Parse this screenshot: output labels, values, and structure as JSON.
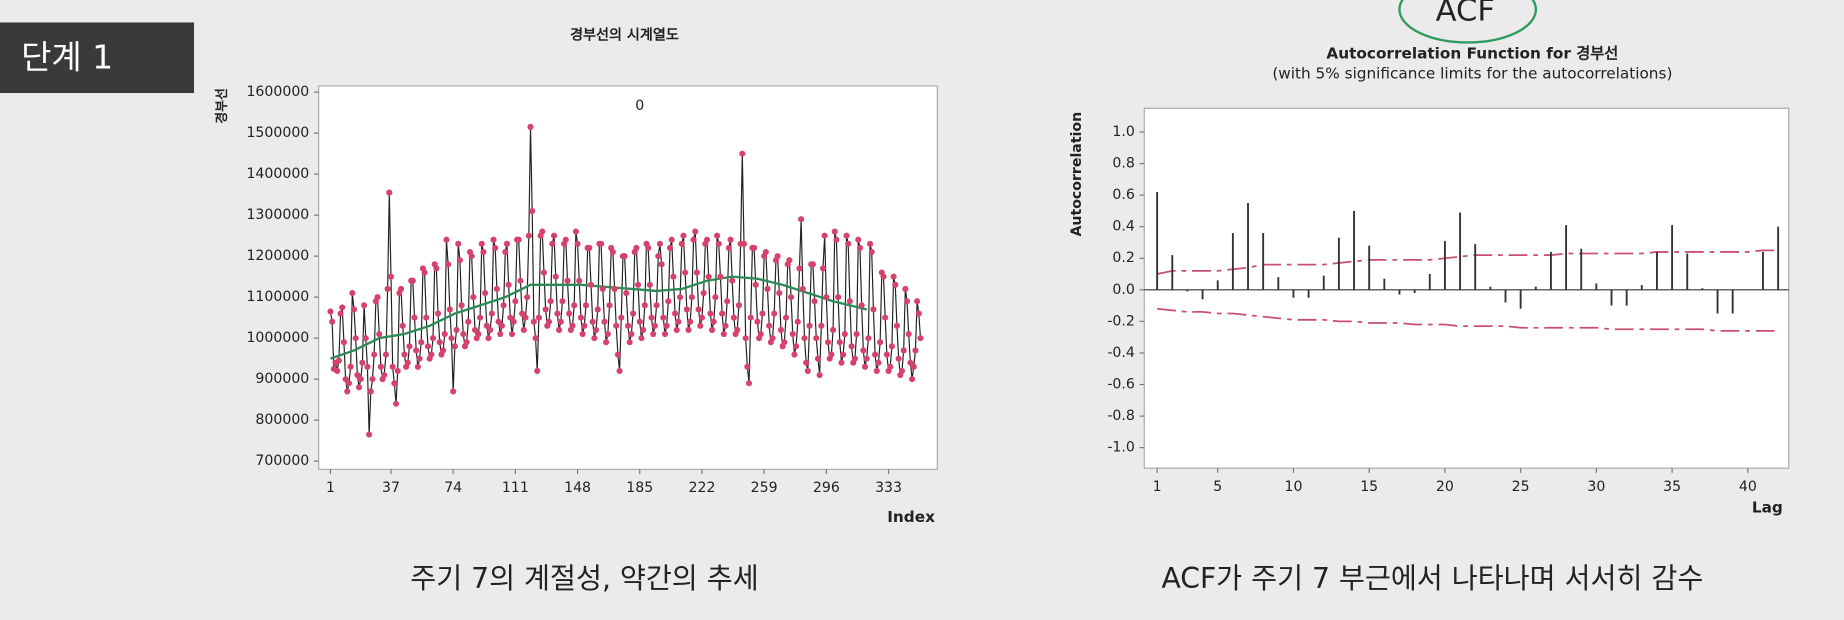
{
  "badge": "단계 1",
  "chart_data": [
    {
      "type": "line",
      "title": "경부선의 시계열도",
      "y_label": "경부선",
      "x_label": "Index",
      "annotation": "0",
      "caption": "주기 7의 계절성, 약간의 추세",
      "xlim": [
        -6,
        362
      ],
      "xticks": [
        1,
        37,
        74,
        111,
        148,
        185,
        222,
        259,
        296,
        333
      ],
      "ylim": [
        680000,
        1615000
      ],
      "yticks": [
        700000,
        800000,
        900000,
        1000000,
        1100000,
        1200000,
        1300000,
        1400000,
        1500000,
        1600000
      ],
      "series": [
        {
          "color": "#222222",
          "marker_color": "#d6436a",
          "markers": true,
          "x": [
            1,
            2,
            3,
            4,
            5,
            6,
            7,
            8,
            9,
            10,
            11,
            12,
            13,
            14,
            15,
            16,
            17,
            18,
            19,
            20,
            21,
            22,
            23,
            24,
            25,
            26,
            27,
            28,
            29,
            30,
            31,
            32,
            33,
            34,
            35,
            36,
            37,
            38,
            39,
            40,
            41,
            42,
            43,
            44,
            45,
            46,
            47,
            48,
            49,
            50,
            51,
            52,
            53,
            54,
            55,
            56,
            57,
            58,
            59,
            60,
            61,
            62,
            63,
            64,
            65,
            66,
            67,
            68,
            69,
            70,
            71,
            72,
            73,
            74,
            75,
            76,
            77,
            78,
            79,
            80,
            81,
            82,
            83,
            84,
            85,
            86,
            87,
            88,
            89,
            90,
            91,
            92,
            93,
            94,
            95,
            96,
            97,
            98,
            99,
            100,
            101,
            102,
            103,
            104,
            105,
            106,
            107,
            108,
            109,
            110,
            111,
            112,
            113,
            114,
            115,
            116,
            117,
            118,
            119,
            120,
            121,
            122,
            123,
            124,
            125,
            126,
            127,
            128,
            129,
            130,
            131,
            132,
            133,
            134,
            135,
            136,
            137,
            138,
            139,
            140,
            141,
            142,
            143,
            144,
            145,
            146,
            147,
            148,
            149,
            150,
            151,
            152,
            153,
            154,
            155,
            156,
            157,
            158,
            159,
            160,
            161,
            162,
            163,
            164,
            165,
            166,
            167,
            168,
            169,
            170,
            171,
            172,
            173,
            174,
            175,
            176,
            177,
            178,
            179,
            180,
            181,
            182,
            183,
            184,
            185,
            186,
            187,
            188,
            189,
            190,
            191,
            192,
            193,
            194,
            195,
            196,
            197,
            198,
            199,
            200,
            201,
            202,
            203,
            204,
            205,
            206,
            207,
            208,
            209,
            210,
            211,
            212,
            213,
            214,
            215,
            216,
            217,
            218,
            219,
            220,
            221,
            222,
            223,
            224,
            225,
            226,
            227,
            228,
            229,
            230,
            231,
            232,
            233,
            234,
            235,
            236,
            237,
            238,
            239,
            240,
            241,
            242,
            243,
            244,
            245,
            246,
            247,
            248,
            249,
            250,
            251,
            252,
            253,
            254,
            255,
            256,
            257,
            258,
            259,
            260,
            261,
            262,
            263,
            264,
            265,
            266,
            267,
            268,
            269,
            270,
            271,
            272,
            273,
            274,
            275,
            276,
            277,
            278,
            279,
            280,
            281,
            282,
            283,
            284,
            285,
            286,
            287,
            288,
            289,
            290,
            291,
            292,
            293,
            294,
            295,
            296,
            297,
            298,
            299,
            300,
            301,
            302,
            303,
            304,
            305,
            306,
            307,
            308,
            309,
            310,
            311,
            312,
            313,
            314,
            315,
            316,
            317,
            318,
            319,
            320,
            321,
            322,
            323,
            324,
            325,
            326,
            327,
            328,
            329,
            330,
            331,
            332,
            333,
            334,
            335,
            336,
            337,
            338,
            339,
            340,
            341,
            342,
            343,
            344,
            345,
            346,
            347,
            348,
            349,
            350,
            351,
            352
          ],
          "values": [
            1065000,
            1040000,
            925000,
            940000,
            920000,
            945000,
            1060000,
            1075000,
            990000,
            900000,
            870000,
            890000,
            930000,
            1110000,
            1070000,
            1000000,
            910000,
            880000,
            900000,
            940000,
            1080000,
            1000000,
            930000,
            765000,
            870000,
            900000,
            960000,
            1090000,
            1100000,
            1010000,
            930000,
            900000,
            910000,
            960000,
            1120000,
            1355000,
            1150000,
            930000,
            890000,
            840000,
            920000,
            1110000,
            1120000,
            1030000,
            960000,
            930000,
            940000,
            980000,
            1140000,
            1140000,
            1050000,
            970000,
            930000,
            950000,
            990000,
            1170000,
            1160000,
            1050000,
            980000,
            950000,
            960000,
            1000000,
            1180000,
            1170000,
            1060000,
            990000,
            960000,
            970000,
            1010000,
            1240000,
            1180000,
            1070000,
            1000000,
            870000,
            980000,
            1020000,
            1230000,
            1190000,
            1080000,
            1010000,
            980000,
            990000,
            1040000,
            1210000,
            1200000,
            1100000,
            1020000,
            1000000,
            1010000,
            1050000,
            1230000,
            1210000,
            1110000,
            1030000,
            1000000,
            1020000,
            1060000,
            1240000,
            1220000,
            1120000,
            1040000,
            1010000,
            1030000,
            1080000,
            1210000,
            1230000,
            1130000,
            1050000,
            1010000,
            1040000,
            1090000,
            1240000,
            1240000,
            1140000,
            1060000,
            1020000,
            1050000,
            1100000,
            1250000,
            1515000,
            1310000,
            1040000,
            1000000,
            920000,
            1050000,
            1250000,
            1260000,
            1160000,
            1070000,
            1030000,
            1040000,
            1090000,
            1230000,
            1250000,
            1150000,
            1060000,
            1020000,
            1040000,
            1090000,
            1230000,
            1240000,
            1140000,
            1060000,
            1020000,
            1030000,
            1080000,
            1260000,
            1230000,
            1140000,
            1050000,
            1010000,
            1030000,
            1080000,
            1220000,
            1220000,
            1130000,
            1040000,
            1000000,
            1020000,
            1070000,
            1230000,
            1230000,
            1120000,
            1040000,
            990000,
            1010000,
            1080000,
            1220000,
            1210000,
            1120000,
            1030000,
            960000,
            920000,
            1050000,
            1200000,
            1200000,
            1110000,
            1030000,
            990000,
            1010000,
            1060000,
            1210000,
            1220000,
            1130000,
            1040000,
            1000000,
            1020000,
            1080000,
            1230000,
            1220000,
            1130000,
            1050000,
            1010000,
            1030000,
            1080000,
            1200000,
            1230000,
            1180000,
            1050000,
            1010000,
            1030000,
            1090000,
            1220000,
            1240000,
            1150000,
            1060000,
            1020000,
            1040000,
            1100000,
            1230000,
            1250000,
            1160000,
            1070000,
            1020000,
            1040000,
            1100000,
            1240000,
            1260000,
            1160000,
            1070000,
            1030000,
            1050000,
            1110000,
            1230000,
            1240000,
            1150000,
            1060000,
            1020000,
            1040000,
            1100000,
            1250000,
            1230000,
            1150000,
            1060000,
            1010000,
            1030000,
            1090000,
            1220000,
            1240000,
            1140000,
            1050000,
            1010000,
            1020000,
            1080000,
            1230000,
            1450000,
            1230000,
            1000000,
            930000,
            890000,
            1050000,
            1220000,
            1220000,
            1130000,
            1040000,
            1000000,
            1010000,
            1060000,
            1200000,
            1210000,
            1120000,
            1030000,
            990000,
            1000000,
            1060000,
            1190000,
            1200000,
            1110000,
            1020000,
            980000,
            990000,
            1050000,
            1180000,
            1190000,
            1100000,
            1010000,
            960000,
            980000,
            1040000,
            1170000,
            1290000,
            1120000,
            1000000,
            940000,
            920000,
            1030000,
            1180000,
            1180000,
            1090000,
            1000000,
            950000,
            910000,
            1030000,
            1170000,
            1250000,
            1100000,
            990000,
            950000,
            960000,
            1020000,
            1260000,
            1240000,
            1100000,
            990000,
            940000,
            960000,
            1010000,
            1250000,
            1230000,
            1090000,
            980000,
            940000,
            950000,
            1010000,
            1240000,
            1220000,
            1080000,
            970000,
            930000,
            950000,
            1000000,
            1230000,
            1210000,
            1070000,
            960000,
            920000,
            940000,
            990000,
            1160000,
            1150000,
            1050000,
            960000,
            920000,
            930000,
            980000,
            1150000,
            1130000,
            1030000,
            950000,
            910000,
            920000,
            970000,
            1120000,
            1090000,
            1010000,
            940000,
            900000,
            930000,
            970000,
            1090000,
            1060000,
            1000000
          ]
        },
        {
          "color": "#2e8b57",
          "markers": false,
          "x": [
            1,
            15,
            30,
            45,
            60,
            75,
            90,
            105,
            120,
            135,
            150,
            165,
            180,
            195,
            210,
            225,
            240,
            255,
            270,
            285,
            300,
            315,
            320
          ],
          "values": [
            950000,
            970000,
            1000000,
            1010000,
            1030000,
            1060000,
            1080000,
            1100000,
            1130000,
            1130000,
            1130000,
            1125000,
            1120000,
            1115000,
            1120000,
            1140000,
            1150000,
            1145000,
            1130000,
            1110000,
            1090000,
            1075000,
            1070000
          ]
        }
      ]
    },
    {
      "type": "bar",
      "title": "Autocorrelation Function for 경부선",
      "subtitle": "(with 5% significance limits for the autocorrelations)",
      "annotation": "ACF",
      "y_label": "Autocorrelation",
      "x_label": "Lag",
      "caption": "ACF가 주기 7 부근에서 나타나며 서서히 감수",
      "color": "#333333",
      "limit_color": "#c8506e",
      "xlim": [
        0.15,
        42.7
      ],
      "xticks": [
        1,
        5,
        10,
        15,
        20,
        25,
        30,
        35,
        40
      ],
      "ylim": [
        -1.13,
        1.15
      ],
      "yticks": [
        {
          "value": 1,
          "label": "1.0"
        },
        0.8,
        0.6,
        0.4,
        0.2,
        {
          "value": 0,
          "label": "0.0"
        },
        -0.2,
        -0.4,
        -0.6,
        -0.8,
        {
          "value": -1,
          "label": "-1.0"
        }
      ],
      "x": [
        1,
        2,
        3,
        4,
        5,
        6,
        7,
        8,
        9,
        10,
        11,
        12,
        13,
        14,
        15,
        16,
        17,
        18,
        19,
        20,
        21,
        22,
        23,
        24,
        25,
        26,
        27,
        28,
        29,
        30,
        31,
        32,
        33,
        34,
        35,
        36,
        37,
        38,
        39,
        40,
        41,
        42
      ],
      "values": [
        0.62,
        0.22,
        -0.01,
        -0.06,
        0.06,
        0.36,
        0.55,
        0.36,
        0.08,
        -0.05,
        -0.05,
        0.09,
        0.33,
        0.5,
        0.28,
        0.07,
        -0.03,
        -0.02,
        0.1,
        0.31,
        0.49,
        0.29,
        0.02,
        -0.08,
        -0.12,
        0.02,
        0.24,
        0.41,
        0.26,
        0.04,
        -0.1,
        -0.1,
        0.03,
        0.24,
        0.41,
        0.23,
        0.01,
        -0.15,
        -0.15,
        0,
        0.24,
        0.4
      ],
      "upper_limit": [
        0.1,
        0.12,
        0.12,
        0.12,
        0.12,
        0.13,
        0.14,
        0.16,
        0.16,
        0.16,
        0.16,
        0.16,
        0.17,
        0.18,
        0.19,
        0.19,
        0.19,
        0.19,
        0.19,
        0.2,
        0.21,
        0.22,
        0.22,
        0.22,
        0.22,
        0.22,
        0.22,
        0.23,
        0.23,
        0.23,
        0.23,
        0.23,
        0.23,
        0.24,
        0.24,
        0.24,
        0.24,
        0.24,
        0.24,
        0.24,
        0.25,
        0.25
      ],
      "lower_limit": [
        -0.12,
        -0.13,
        -0.14,
        -0.14,
        -0.15,
        -0.15,
        -0.16,
        -0.17,
        -0.18,
        -0.19,
        -0.19,
        -0.19,
        -0.2,
        -0.2,
        -0.21,
        -0.21,
        -0.21,
        -0.22,
        -0.22,
        -0.22,
        -0.23,
        -0.23,
        -0.23,
        -0.23,
        -0.24,
        -0.24,
        -0.24,
        -0.24,
        -0.24,
        -0.24,
        -0.25,
        -0.25,
        -0.25,
        -0.25,
        -0.25,
        -0.25,
        -0.25,
        -0.26,
        -0.26,
        -0.26,
        -0.26,
        -0.26
      ]
    }
  ]
}
